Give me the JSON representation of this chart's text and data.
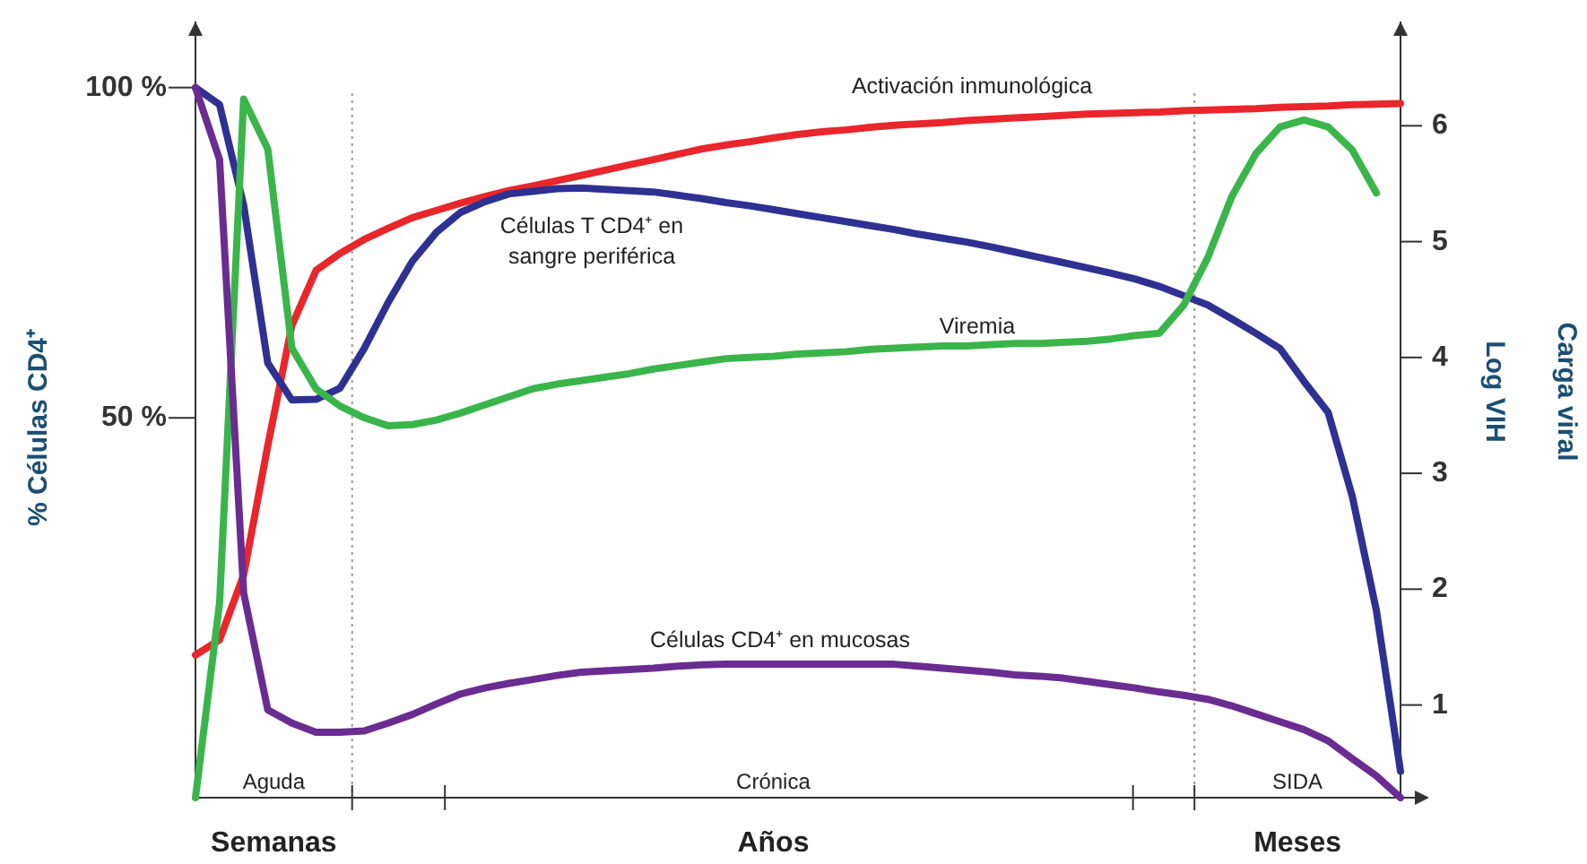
{
  "chart_data": {
    "type": "line",
    "categories": [
      null,
      null,
      null,
      null,
      null,
      null,
      null,
      null,
      null,
      null,
      null,
      null,
      null,
      null,
      null,
      null,
      null,
      null,
      null,
      null,
      null,
      null,
      null,
      null,
      null,
      null,
      null,
      null,
      null,
      null,
      null,
      null,
      null,
      null,
      null,
      null,
      null,
      null,
      null,
      null,
      null,
      null,
      null,
      null,
      null,
      null,
      null,
      null,
      null,
      null,
      null
    ],
    "ylim": [
      -7.5,
      110
    ],
    "yticks": [
      {
        "value": 100,
        "label": "100 %"
      },
      {
        "value": 50,
        "label": "50 %"
      }
    ],
    "y2lim": [
      0.2,
      6.9
    ],
    "y2ticks": [
      1,
      2,
      3,
      4,
      5,
      6
    ],
    "ylabel": "% Células CD4⁺",
    "y2label": "Carga viral\nLog VIH",
    "marker": "none",
    "line_style": "solid",
    "series": [
      {
        "name": "Activación inmunológica",
        "color": "#e8262b",
        "values": [
          14.1,
          16.4,
          26.2,
          45.8,
          64.0,
          72.3,
          74.9,
          77.0,
          78.7,
          80.3,
          81.4,
          82.5,
          83.5,
          84.4,
          85.1,
          85.9,
          86.7,
          87.5,
          88.3,
          89.1,
          89.9,
          90.7,
          91.3,
          91.8,
          92.4,
          92.9,
          93.3,
          93.6,
          94.0,
          94.3,
          94.5,
          94.7,
          95.0,
          95.2,
          95.4,
          95.6,
          95.8,
          96.0,
          96.1,
          96.2,
          96.3,
          96.5,
          96.6,
          96.7,
          96.8,
          97.0,
          97.1,
          97.2,
          97.4,
          97.5,
          97.6
        ]
      },
      {
        "name": "Células T CD4⁺ en sangre periférica",
        "color": "#2e3192",
        "values": [
          100,
          97.4,
          82.2,
          58.3,
          52.7,
          52.8,
          54.5,
          60.5,
          67.5,
          73.7,
          78.1,
          81.1,
          82.7,
          83.9,
          84.3,
          84.7,
          84.8,
          84.6,
          84.4,
          84.2,
          83.7,
          83.2,
          82.6,
          82.1,
          81.5,
          80.9,
          80.3,
          79.7,
          79.1,
          78.5,
          77.8,
          77.2,
          76.6,
          75.9,
          75.1,
          74.3,
          73.5,
          72.7,
          71.9,
          71.0,
          69.9,
          68.5,
          67.1,
          65.0,
          62.8,
          60.5,
          55.5,
          50.8,
          38.1,
          20.8,
          -3.5
        ]
      },
      {
        "name": "Viremia",
        "color": "#3ab54a",
        "axis": "y2",
        "values": [
          0.2,
          1.88,
          6.23,
          5.8,
          4.08,
          3.73,
          3.58,
          3.48,
          3.41,
          3.42,
          3.46,
          3.52,
          3.59,
          3.66,
          3.73,
          3.77,
          3.8,
          3.83,
          3.86,
          3.9,
          3.93,
          3.96,
          3.99,
          4.0,
          4.01,
          4.03,
          4.04,
          4.05,
          4.07,
          4.08,
          4.09,
          4.1,
          4.1,
          4.11,
          4.12,
          4.12,
          4.13,
          4.14,
          4.16,
          4.19,
          4.21,
          4.45,
          4.86,
          5.39,
          5.76,
          5.99,
          6.05,
          5.99,
          5.79,
          5.42,
          null
        ]
      },
      {
        "name": "Células CD4⁺ en mucosas",
        "color": "#6a2c91",
        "values": [
          100,
          89.1,
          23.5,
          5.8,
          3.8,
          2.4,
          2.4,
          2.6,
          3.8,
          5.1,
          6.7,
          8.2,
          9.1,
          9.8,
          10.4,
          11.0,
          11.5,
          11.7,
          11.9,
          12.1,
          12.4,
          12.6,
          12.7,
          12.7,
          12.7,
          12.7,
          12.7,
          12.7,
          12.7,
          12.7,
          12.4,
          12.1,
          11.8,
          11.5,
          11.1,
          10.9,
          10.6,
          10.1,
          9.6,
          9.1,
          8.5,
          8.0,
          7.4,
          6.4,
          5.2,
          4.0,
          2.8,
          1.1,
          -1.6,
          -4.2,
          -7.5
        ]
      }
    ],
    "annotations": [
      "Aguda",
      "Crónica",
      "SIDA",
      "Semanas",
      "Años",
      "Meses"
    ]
  }
}
